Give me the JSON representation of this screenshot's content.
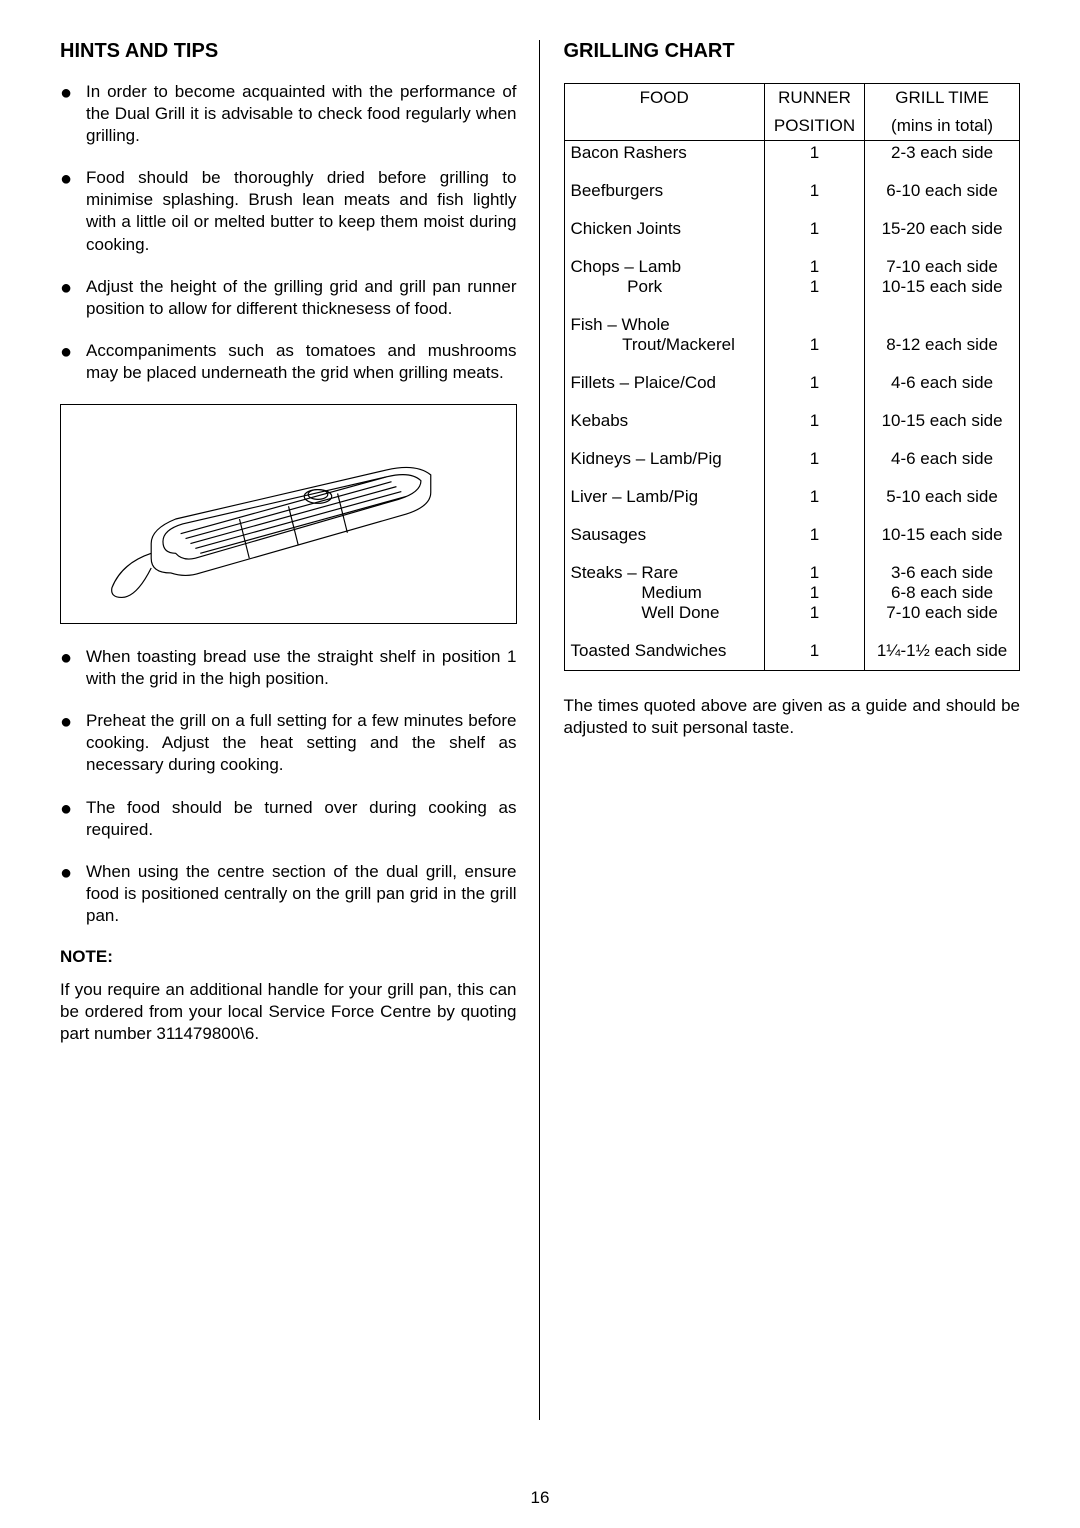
{
  "left": {
    "heading": "HINTS AND TIPS",
    "bullets1": [
      "In order to become acquainted with the performance of the Dual Grill it is advisable to check food regularly when grilling.",
      "Food should be thoroughly dried before grilling to minimise splashing.  Brush lean meats and fish lightly with a little oil or melted butter to keep them moist during cooking.",
      "Adjust the height of the grilling grid and grill pan runner position to allow for different thicknesess of food.",
      "Accompaniments such as tomatoes and mushrooms may be placed underneath the grid when grilling meats."
    ],
    "bullets2": [
      "When toasting bread use the straight shelf in position 1 with the grid in the high position.",
      "Preheat the grill on a full setting for a few minutes before cooking.  Adjust the heat setting and the shelf as necessary during cooking.",
      "The food should be turned over during cooking as required.",
      "When using the centre section of the dual grill, ensure food is positioned centrally on the grill pan grid in the grill pan."
    ],
    "noteHeading": "NOTE:",
    "noteBody": "If you require an additional handle for your grill pan, this can be ordered from your local Service Force Centre by quoting part number 311479800\\6."
  },
  "right": {
    "heading": "GRILLING CHART",
    "table": {
      "header": {
        "food": "FOOD",
        "runner1": "RUNNER",
        "runner2": "POSITION",
        "time1": "GRILL TIME",
        "time2": "(mins in total)"
      },
      "rows": [
        {
          "food": "Bacon Rashers",
          "pos": "1",
          "time": "2-3 each side"
        },
        {
          "food": "Beefburgers",
          "pos": "1",
          "time": "6-10 each side"
        },
        {
          "food": "Chicken Joints",
          "pos": "1",
          "time": "15-20 each side"
        },
        {
          "food": "Chops – Lamb\n            Pork",
          "pos": "1\n1",
          "time": "7-10 each side\n10-15 each side"
        },
        {
          "food": "Fish – Whole\n           Trout/Mackerel",
          "pos": "\n1",
          "time": "\n8-12 each side"
        },
        {
          "food": "Fillets – Plaice/Cod",
          "pos": "1",
          "time": "4-6 each side"
        },
        {
          "food": "Kebabs",
          "pos": "1",
          "time": "10-15 each side"
        },
        {
          "food": "Kidneys – Lamb/Pig",
          "pos": "1",
          "time": "4-6 each side"
        },
        {
          "food": "Liver – Lamb/Pig",
          "pos": "1",
          "time": "5-10 each side"
        },
        {
          "food": "Sausages",
          "pos": "1",
          "time": "10-15 each side"
        },
        {
          "food": "Steaks – Rare\n               Medium\n               Well Done",
          "pos": "1\n1\n1",
          "time": "3-6 each side\n6-8 each side\n7-10 each side"
        },
        {
          "food": "Toasted Sandwiches",
          "pos": "1",
          "time": "1¼-1½ each side"
        }
      ]
    },
    "footnote": "The times quoted above are given as a guide and should be adjusted to suit personal taste."
  },
  "pageNumber": "16"
}
